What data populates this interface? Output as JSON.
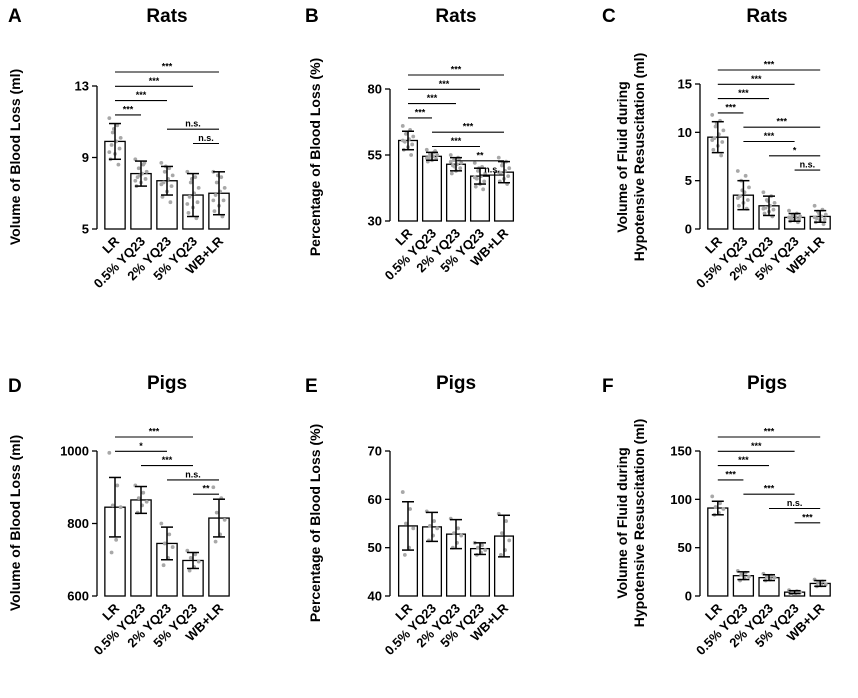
{
  "chart_data": [
    {
      "panel": "A",
      "title": "Rats",
      "type": "bar",
      "ylabel": [
        "Volume of Blood Loss (ml)"
      ],
      "categories": [
        "LR",
        "0.5% YQ23",
        "2% YQ23",
        "5% YQ23",
        "WB+LR"
      ],
      "values": [
        9.9,
        8.1,
        7.7,
        6.9,
        7.0
      ],
      "errors": [
        1.0,
        0.7,
        0.8,
        1.2,
        1.2
      ],
      "ylim": [
        5,
        13
      ],
      "yticks": [
        5,
        9,
        13
      ],
      "points": [
        [
          11.2,
          10.8,
          10.4,
          10.1,
          9.9,
          9.7,
          9.5,
          9.2,
          8.9,
          8.6,
          10.6,
          9.3
        ],
        [
          8.9,
          8.6,
          8.4,
          8.2,
          8.1,
          7.9,
          7.8,
          7.6,
          7.4,
          8.7,
          8.0,
          7.7
        ],
        [
          8.7,
          8.4,
          8.2,
          8.0,
          7.8,
          7.6,
          7.4,
          7.1,
          6.8,
          6.5,
          8.5,
          7.5
        ],
        [
          8.2,
          7.9,
          7.6,
          7.3,
          7.0,
          6.8,
          6.5,
          6.2,
          5.9,
          5.6,
          7.8,
          6.4
        ],
        [
          8.2,
          7.9,
          7.6,
          7.3,
          7.1,
          6.9,
          6.6,
          6.3,
          6.0,
          5.7,
          8.0,
          6.6
        ]
      ],
      "significance": [
        {
          "from": 0,
          "to": 4,
          "label": "***"
        },
        {
          "from": 0,
          "to": 3,
          "label": "***"
        },
        {
          "from": 0,
          "to": 2,
          "label": "***"
        },
        {
          "from": 0,
          "to": 1,
          "label": "***"
        },
        {
          "from": 2,
          "to": 4,
          "label": "n.s."
        },
        {
          "from": 3,
          "to": 4,
          "label": "n.s."
        }
      ]
    },
    {
      "panel": "B",
      "title": "Rats",
      "type": "bar",
      "ylabel": [
        "Percentage of Blood Loss (%)"
      ],
      "categories": [
        "LR",
        "0.5% YQ23",
        "2% YQ23",
        "5% YQ23",
        "WB+LR"
      ],
      "values": [
        60.5,
        54.5,
        51.5,
        47.0,
        48.5
      ],
      "errors": [
        3.5,
        1.5,
        2.5,
        3.0,
        4.0
      ],
      "ylim": [
        30,
        80
      ],
      "yticks": [
        30,
        55,
        80
      ],
      "points": [
        [
          66.0,
          64.5,
          63.0,
          62.0,
          61.0,
          60.0,
          59.0,
          58.0,
          57.0,
          55.0,
          63.5,
          60.5
        ],
        [
          57.0,
          56.0,
          55.5,
          55.0,
          54.5,
          54.0,
          53.5,
          53.0,
          52.5,
          56.5,
          54.8,
          53.8
        ],
        [
          55.0,
          54.0,
          53.0,
          52.0,
          51.5,
          51.0,
          50.0,
          49.0,
          48.0,
          53.5,
          50.5,
          52.5
        ],
        [
          52.0,
          50.5,
          49.0,
          48.0,
          47.0,
          46.0,
          45.0,
          44.0,
          43.0,
          42.0,
          50.0,
          46.5
        ],
        [
          54.0,
          52.5,
          51.0,
          50.0,
          49.0,
          48.0,
          47.0,
          46.0,
          45.0,
          44.0,
          52.0,
          48.5
        ]
      ],
      "significance": [
        {
          "from": 0,
          "to": 4,
          "label": "***"
        },
        {
          "from": 0,
          "to": 3,
          "label": "***"
        },
        {
          "from": 0,
          "to": 2,
          "label": "***"
        },
        {
          "from": 0,
          "to": 1,
          "label": "***"
        },
        {
          "from": 1,
          "to": 4,
          "label": "***"
        },
        {
          "from": 1,
          "to": 3,
          "label": "***"
        },
        {
          "from": 2,
          "to": 4,
          "label": "**"
        },
        {
          "from": 3,
          "to": 4,
          "label": "n.s."
        }
      ]
    },
    {
      "panel": "C",
      "title": "Rats",
      "type": "bar",
      "ylabel": [
        "Volume of Fluid during",
        "Hypotensive Resuscitation (ml)"
      ],
      "categories": [
        "LR",
        "0.5% YQ23",
        "2% YQ23",
        "5% YQ23",
        "WB+LR"
      ],
      "values": [
        9.5,
        3.5,
        2.4,
        1.2,
        1.3
      ],
      "errors": [
        1.6,
        1.5,
        1.0,
        0.4,
        0.6
      ],
      "ylim": [
        0,
        15
      ],
      "yticks": [
        0,
        5,
        10,
        15
      ],
      "points": [
        [
          11.8,
          11.2,
          10.6,
          10.2,
          9.8,
          9.4,
          9.0,
          8.6,
          8.2,
          7.6,
          10.9,
          9.2
        ],
        [
          6.0,
          5.5,
          5.0,
          4.3,
          3.8,
          3.4,
          3.0,
          2.7,
          2.4,
          2.1,
          4.0,
          3.2
        ],
        [
          3.8,
          3.4,
          3.0,
          2.7,
          2.4,
          2.2,
          2.0,
          1.8,
          1.6,
          1.3,
          2.9,
          2.1
        ],
        [
          1.9,
          1.6,
          1.4,
          1.3,
          1.2,
          1.1,
          1.0,
          0.9,
          0.8,
          0.7,
          1.5,
          1.2
        ],
        [
          2.4,
          2.0,
          1.8,
          1.5,
          1.3,
          1.1,
          1.0,
          0.9,
          0.7,
          0.5,
          1.6,
          1.2
        ]
      ],
      "significance": [
        {
          "from": 0,
          "to": 4,
          "label": "***"
        },
        {
          "from": 0,
          "to": 3,
          "label": "***"
        },
        {
          "from": 0,
          "to": 2,
          "label": "***"
        },
        {
          "from": 0,
          "to": 1,
          "label": "***"
        },
        {
          "from": 1,
          "to": 4,
          "label": "***"
        },
        {
          "from": 1,
          "to": 3,
          "label": "***"
        },
        {
          "from": 2,
          "to": 4,
          "label": "*"
        },
        {
          "from": 3,
          "to": 4,
          "label": "n.s."
        }
      ]
    },
    {
      "panel": "D",
      "title": "Pigs",
      "type": "bar",
      "ylabel": [
        "Volume of Blood Loss (ml)"
      ],
      "categories": [
        "LR",
        "0.5% YQ23",
        "2% YQ23",
        "5% YQ23",
        "WB+LR"
      ],
      "values": [
        845,
        865,
        745,
        698,
        815
      ],
      "errors": [
        82,
        37,
        45,
        22,
        52
      ],
      "ylim": [
        600,
        1000
      ],
      "yticks": [
        600,
        800,
        1000
      ],
      "points": [
        [
          995,
          905,
          850,
          845,
          755,
          720
        ],
        [
          905,
          885,
          870,
          860,
          850,
          830
        ],
        [
          800,
          770,
          745,
          735,
          705,
          685
        ],
        [
          725,
          715,
          705,
          695,
          680,
          670
        ],
        [
          900,
          870,
          830,
          810,
          770,
          750
        ]
      ],
      "significance": [
        {
          "from": 0,
          "to": 3,
          "label": "***"
        },
        {
          "from": 0,
          "to": 2,
          "label": "*"
        },
        {
          "from": 1,
          "to": 3,
          "label": "***"
        },
        {
          "from": 2,
          "to": 4,
          "label": "n.s."
        },
        {
          "from": 3,
          "to": 4,
          "label": "**"
        }
      ]
    },
    {
      "panel": "E",
      "title": "Pigs",
      "type": "bar",
      "ylabel": [
        "Percentage of Blood Loss (%)"
      ],
      "categories": [
        "LR",
        "0.5% YQ23",
        "2% YQ23",
        "5% YQ23",
        "WB+LR"
      ],
      "values": [
        54.5,
        54.3,
        52.8,
        49.8,
        52.4
      ],
      "errors": [
        5.0,
        3.0,
        3.0,
        1.2,
        4.3
      ],
      "ylim": [
        40,
        70
      ],
      "yticks": [
        40,
        50,
        60,
        70
      ],
      "points": [
        [
          61.5,
          58.0,
          55.0,
          54.0,
          50.0,
          48.5
        ],
        [
          57.5,
          55.5,
          54.5,
          54.0,
          52.5,
          51.5
        ],
        [
          56.0,
          54.0,
          53.0,
          52.5,
          51.0,
          50.0
        ],
        [
          51.0,
          50.5,
          50.0,
          49.5,
          49.0,
          48.5
        ],
        [
          57.0,
          55.5,
          53.0,
          51.5,
          49.5,
          48.5
        ]
      ],
      "significance": []
    },
    {
      "panel": "F",
      "title": "Pigs",
      "type": "bar",
      "ylabel": [
        "Volume of Fluid during",
        "Hypotensive Resuscitation (ml)"
      ],
      "categories": [
        "LR",
        "0.5% YQ23",
        "2% YQ23",
        "5% YQ23",
        "WB+LR"
      ],
      "values": [
        91,
        21,
        19,
        4,
        13
      ],
      "errors": [
        7,
        4,
        3,
        1.5,
        3
      ],
      "ylim": [
        0,
        150
      ],
      "yticks": [
        0,
        50,
        100,
        150
      ],
      "points": [
        [
          103,
          96,
          92,
          90,
          86,
          84
        ],
        [
          26,
          24,
          22,
          20,
          18,
          16
        ],
        [
          23,
          21,
          20,
          19,
          17,
          16
        ],
        [
          6,
          5,
          4,
          4,
          3,
          2
        ],
        [
          17,
          15,
          14,
          12,
          11,
          10
        ]
      ],
      "significance": [
        {
          "from": 0,
          "to": 4,
          "label": "***"
        },
        {
          "from": 0,
          "to": 3,
          "label": "***"
        },
        {
          "from": 0,
          "to": 2,
          "label": "***"
        },
        {
          "from": 0,
          "to": 1,
          "label": "***"
        },
        {
          "from": 1,
          "to": 3,
          "label": "***"
        },
        {
          "from": 2,
          "to": 4,
          "label": "n.s."
        },
        {
          "from": 3,
          "to": 4,
          "label": "***"
        }
      ]
    }
  ]
}
